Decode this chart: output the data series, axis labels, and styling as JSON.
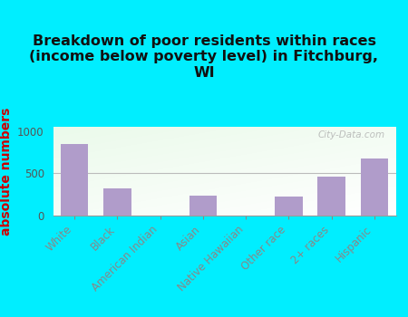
{
  "categories": [
    "White",
    "Black",
    "American Indian",
    "Asian",
    "Native Hawaiian",
    "Other race",
    "2+ races",
    "Hispanic"
  ],
  "values": [
    850,
    320,
    5,
    240,
    0,
    230,
    460,
    670
  ],
  "bar_color": "#b09cca",
  "bar_edge_color": "#9080b8",
  "title": "Breakdown of poor residents within races\n(income below poverty level) in Fitchburg,\nWI",
  "ylabel": "absolute numbers",
  "ylim": [
    0,
    1050
  ],
  "yticks": [
    0,
    500,
    1000
  ],
  "background_color": "#00eeff",
  "title_fontsize": 11.5,
  "ylabel_fontsize": 10,
  "tick_fontsize": 8.5,
  "watermark": "City-Data.com",
  "grid_color": "#bbbbbb",
  "tick_color": "#00bbcc",
  "ytick_color": "#555555"
}
